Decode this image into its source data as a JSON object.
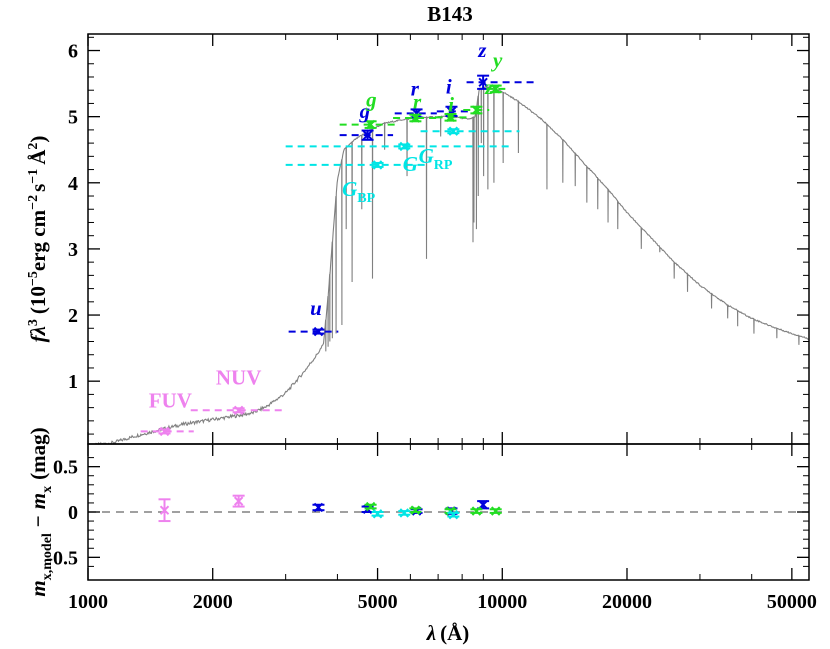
{
  "chart_data": {
    "type": "sed",
    "title": "B143",
    "xlabel": {
      "base": "λ",
      "unit": "(Å)"
    },
    "x_scale": "log",
    "xlim": [
      1000,
      55000
    ],
    "x_ticks": [
      1000,
      2000,
      5000,
      10000,
      20000,
      50000
    ],
    "x_tick_labels": [
      "1000",
      "2000",
      "5000",
      "10000",
      "20000",
      "50000"
    ],
    "top_panel": {
      "ylabel": {
        "main": "fλ",
        "pow": "3",
        "unit": "(10",
        "exp1": "−5",
        "unit2": "erg cm",
        "exp2": "−2",
        "unit3": "s",
        "exp3": "−1",
        "unit4": "Å",
        "exp4": "2",
        "close": ")"
      },
      "ylim": [
        0.05,
        6.25
      ],
      "y_ticks": [
        1,
        2,
        3,
        4,
        5,
        6
      ],
      "model_spectrum": {
        "color": "#808080",
        "continuum": [
          [
            1000,
            0.02
          ],
          [
            1150,
            0.07
          ],
          [
            1300,
            0.17
          ],
          [
            1500,
            0.27
          ],
          [
            1700,
            0.35
          ],
          [
            2000,
            0.42
          ],
          [
            2300,
            0.48
          ],
          [
            2500,
            0.52
          ],
          [
            2700,
            0.62
          ],
          [
            3000,
            0.82
          ],
          [
            3300,
            1.12
          ],
          [
            3550,
            1.38
          ],
          [
            3700,
            1.55
          ],
          [
            3800,
            2.3
          ],
          [
            3900,
            3.2
          ],
          [
            4000,
            4.05
          ],
          [
            4150,
            4.5
          ],
          [
            4400,
            4.65
          ],
          [
            4800,
            4.8
          ],
          [
            5200,
            4.9
          ],
          [
            5800,
            4.96
          ],
          [
            6500,
            4.99
          ],
          [
            7200,
            5.0
          ],
          [
            7800,
            4.99
          ],
          [
            8300,
            4.96
          ],
          [
            8600,
            5.0
          ],
          [
            8800,
            5.42
          ],
          [
            9200,
            5.45
          ],
          [
            10000,
            5.38
          ],
          [
            11000,
            5.22
          ],
          [
            12500,
            4.95
          ],
          [
            14000,
            4.65
          ],
          [
            16000,
            4.25
          ],
          [
            18000,
            3.9
          ],
          [
            20000,
            3.55
          ],
          [
            23000,
            3.15
          ],
          [
            26000,
            2.8
          ],
          [
            30000,
            2.45
          ],
          [
            35000,
            2.15
          ],
          [
            40000,
            1.95
          ],
          [
            45000,
            1.82
          ],
          [
            50000,
            1.72
          ],
          [
            55000,
            1.64
          ]
        ],
        "absorption_lines": [
          [
            3750,
            1.45
          ],
          [
            3798,
            1.52
          ],
          [
            3835,
            1.6
          ],
          [
            3889,
            1.65
          ],
          [
            3970,
            1.72
          ],
          [
            4101,
            1.85
          ],
          [
            4200,
            3.3
          ],
          [
            4340,
            2.5
          ],
          [
            4580,
            3.6
          ],
          [
            4861,
            2.55
          ],
          [
            5200,
            4.5
          ],
          [
            5890,
            4.1
          ],
          [
            6563,
            2.85
          ],
          [
            7100,
            4.7
          ],
          [
            8498,
            3.1
          ],
          [
            8542,
            3.4
          ],
          [
            8662,
            3.3
          ],
          [
            8750,
            3.8
          ],
          [
            8900,
            4.6
          ],
          [
            9015,
            4.1
          ],
          [
            9230,
            3.9
          ],
          [
            9546,
            4.0
          ],
          [
            10049,
            4.3
          ],
          [
            10938,
            4.45
          ],
          [
            12818,
            3.9
          ],
          [
            14000,
            4.0
          ],
          [
            15000,
            3.95
          ],
          [
            16000,
            3.7
          ],
          [
            17000,
            3.6
          ],
          [
            18000,
            3.4
          ],
          [
            19000,
            3.3
          ],
          [
            21655,
            3.0
          ],
          [
            24000,
            2.95
          ],
          [
            26000,
            2.55
          ],
          [
            28000,
            2.35
          ],
          [
            32000,
            2.1
          ],
          [
            35000,
            1.95
          ],
          [
            37000,
            1.83
          ],
          [
            40500,
            1.72
          ],
          [
            46000,
            1.65
          ],
          [
            52000,
            1.55
          ]
        ]
      },
      "photometry": [
        {
          "band": "FUV",
          "color": "#ee82ee",
          "x": 1530,
          "xerr_lo": 1340,
          "xerr_hi": 1800,
          "y": 0.24,
          "yerr": 0.03,
          "label": "FUV",
          "label_x": 1580,
          "label_y": 0.6
        },
        {
          "band": "NUV",
          "color": "#ee82ee",
          "x": 2310,
          "xerr_lo": 1770,
          "xerr_hi": 3000,
          "y": 0.56,
          "yerr": 0.03,
          "label": "NUV",
          "label_x": 2310,
          "label_y": 0.95
        },
        {
          "band": "u",
          "color": "#0000dd",
          "x": 3600,
          "xerr_lo": 3050,
          "xerr_hi": 4020,
          "y": 1.75,
          "yerr": 0.03,
          "label": "u",
          "label_x": 3550,
          "label_y": 2.0
        },
        {
          "band": "g",
          "color": "#0000dd",
          "x": 4730,
          "xerr_lo": 4050,
          "xerr_hi": 5450,
          "y": 4.72,
          "yerr": 0.07,
          "label": "g",
          "label_x": 4660,
          "label_y": 4.98
        },
        {
          "band": "r",
          "color": "#0000dd",
          "x": 6210,
          "xerr_lo": 5500,
          "xerr_hi": 6950,
          "y": 5.05,
          "yerr": 0.06,
          "label": "r",
          "label_x": 6150,
          "label_y": 5.32
        },
        {
          "band": "i",
          "color": "#0000dd",
          "x": 7540,
          "xerr_lo": 6950,
          "xerr_hi": 8400,
          "y": 5.08,
          "yerr": 0.07,
          "label": "i",
          "label_x": 7430,
          "label_y": 5.35
        },
        {
          "band": "z",
          "color": "#0000dd",
          "x": 8990,
          "xerr_lo": 8200,
          "xerr_hi": 12000,
          "y": 5.52,
          "yerr": 0.1,
          "label": "z",
          "label_x": 8950,
          "label_y": 5.9
        },
        {
          "band": "g",
          "color": "#22dd22",
          "x": 4810,
          "xerr_lo": 4050,
          "xerr_hi": 5550,
          "y": 4.88,
          "yerr": 0.05,
          "label": "g",
          "label_x": 4830,
          "label_y": 5.15
        },
        {
          "band": "r",
          "color": "#22dd22",
          "x": 6170,
          "xerr_lo": 5450,
          "xerr_hi": 6950,
          "y": 4.98,
          "yerr": 0.05,
          "label": "r",
          "label_x": 6230,
          "label_y": 5.12
        },
        {
          "band": "i",
          "color": "#22dd22",
          "x": 7500,
          "xerr_lo": 6900,
          "xerr_hi": 8300,
          "y": 4.99,
          "yerr": 0.05,
          "label": "i",
          "label_x": 7520,
          "label_y": 5.08
        },
        {
          "band": "z",
          "color": "#22dd22",
          "x": 8660,
          "xerr_lo": 8050,
          "xerr_hi": 9300,
          "y": 5.1,
          "yerr": 0.05,
          "label": "z",
          "label_x": 9300,
          "label_y": 5.34
        },
        {
          "band": "y",
          "color": "#22dd22",
          "x": 9640,
          "xerr_lo": 9150,
          "xerr_hi": 10400,
          "y": 5.42,
          "yerr": 0.05,
          "label": "y",
          "label_x": 9750,
          "label_y": 5.75
        },
        {
          "band": "G_BP",
          "color": "#00e5e5",
          "x": 5000,
          "xerr_lo": 3000,
          "xerr_hi": 6500,
          "y": 4.27,
          "yerr": 0.03,
          "label": "G",
          "sub": "BP",
          "label_x": 4500,
          "label_y": 3.8
        },
        {
          "band": "G",
          "color": "#00e5e5",
          "x": 5800,
          "xerr_lo": 3000,
          "xerr_hi": 10500,
          "y": 4.55,
          "yerr": 0.03,
          "label": "G",
          "label_x": 6000,
          "label_y": 4.18
        },
        {
          "band": "G_RP",
          "color": "#00e5e5",
          "x": 7620,
          "xerr_lo": 6350,
          "xerr_hi": 11000,
          "y": 4.78,
          "yerr": 0.03,
          "label": "G",
          "sub": "RP",
          "label_x": 6900,
          "label_y": 4.3
        }
      ]
    },
    "bottom_panel": {
      "ylabel": {
        "main": "m",
        "sub": "x,model",
        "minus": "−",
        "main2": "m",
        "sub2": "x",
        "unit": "(mag)"
      },
      "ylim": [
        -0.75,
        0.75
      ],
      "y_ticks": [
        -0.5,
        0,
        0.5
      ],
      "y_tick_labels": [
        "-0.5",
        "0",
        "0.5"
      ],
      "zero_line_color": "#808080",
      "residuals": [
        {
          "band": "FUV",
          "color": "#ee82ee",
          "x": 1530,
          "y": 0.02,
          "yerr": 0.12
        },
        {
          "band": "NUV",
          "color": "#ee82ee",
          "x": 2310,
          "y": 0.12,
          "yerr": 0.06
        },
        {
          "band": "u",
          "color": "#0000dd",
          "x": 3600,
          "y": 0.05,
          "yerr": 0.03
        },
        {
          "band": "g",
          "color": "#0000dd",
          "x": 4730,
          "y": 0.03,
          "yerr": 0.03
        },
        {
          "band": "r",
          "color": "#0000dd",
          "x": 6210,
          "y": 0.01,
          "yerr": 0.02
        },
        {
          "band": "i",
          "color": "#0000dd",
          "x": 7540,
          "y": 0.01,
          "yerr": 0.03
        },
        {
          "band": "z",
          "color": "#0000dd",
          "x": 8990,
          "y": 0.08,
          "yerr": 0.04
        },
        {
          "band": "g",
          "color": "#22dd22",
          "x": 4810,
          "y": 0.06,
          "yerr": 0.02
        },
        {
          "band": "r",
          "color": "#22dd22",
          "x": 6170,
          "y": 0.02,
          "yerr": 0.02
        },
        {
          "band": "i",
          "color": "#22dd22",
          "x": 7500,
          "y": 0.01,
          "yerr": 0.02
        },
        {
          "band": "z",
          "color": "#22dd22",
          "x": 8660,
          "y": 0.01,
          "yerr": 0.02
        },
        {
          "band": "y",
          "color": "#22dd22",
          "x": 9640,
          "y": 0.01,
          "yerr": 0.02
        },
        {
          "band": "G_BP",
          "color": "#00e5e5",
          "x": 5000,
          "y": -0.02,
          "yerr": 0.02
        },
        {
          "band": "G",
          "color": "#00e5e5",
          "x": 5800,
          "y": -0.01,
          "yerr": 0.02
        },
        {
          "band": "G_RP",
          "color": "#00e5e5",
          "x": 7620,
          "y": -0.03,
          "yerr": 0.02
        }
      ]
    }
  }
}
